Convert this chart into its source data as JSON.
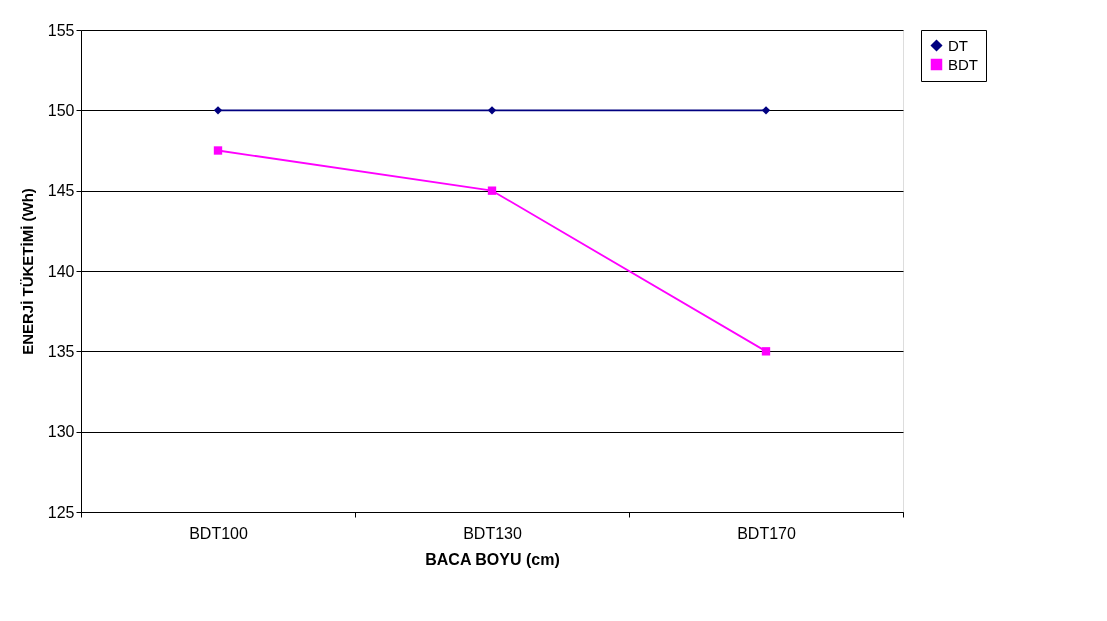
{
  "chart_data": {
    "type": "line",
    "xlabel": "BACA BOYU (cm)",
    "ylabel": "ENERJİ TÜKETİMİ (Wh)",
    "categories": [
      "BDT100",
      "BDT130",
      "BDT170"
    ],
    "series": [
      {
        "name": "DT",
        "color": "#000080",
        "marker": "diamond",
        "values": [
          150,
          150,
          150
        ]
      },
      {
        "name": "BDT",
        "color": "#ff00ff",
        "marker": "square",
        "values": [
          147.5,
          145,
          135
        ]
      }
    ],
    "ylim": [
      125,
      155
    ],
    "yticks": [
      125,
      130,
      135,
      140,
      145,
      150,
      155
    ],
    "grid": "y",
    "legend": "right"
  }
}
